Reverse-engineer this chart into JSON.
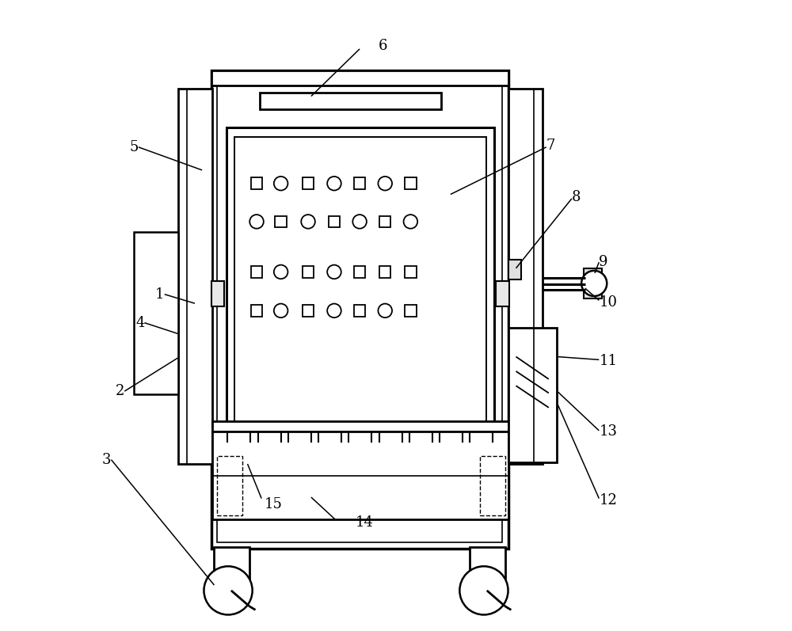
{
  "bg_color": "#ffffff",
  "lc": "#000000",
  "figsize": [
    10.0,
    7.97
  ]
}
